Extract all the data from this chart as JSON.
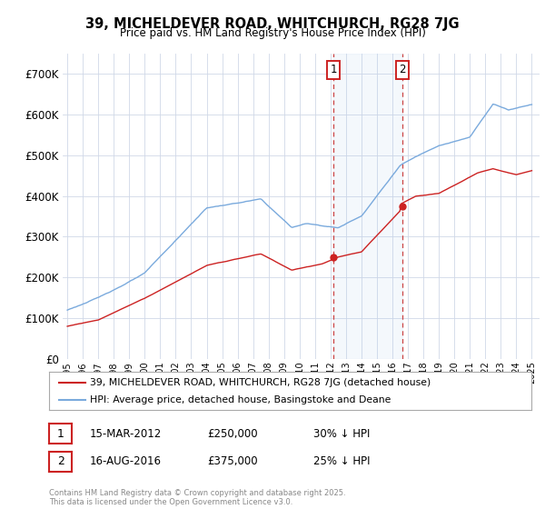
{
  "title": "39, MICHELDEVER ROAD, WHITCHURCH, RG28 7JG",
  "subtitle": "Price paid vs. HM Land Registry's House Price Index (HPI)",
  "ylim": [
    0,
    750000
  ],
  "yticks": [
    0,
    100000,
    200000,
    300000,
    400000,
    500000,
    600000,
    700000
  ],
  "ytick_labels": [
    "£0",
    "£100K",
    "£200K",
    "£300K",
    "£400K",
    "£500K",
    "£600K",
    "£700K"
  ],
  "legend_line1": "39, MICHELDEVER ROAD, WHITCHURCH, RG28 7JG (detached house)",
  "legend_line2": "HPI: Average price, detached house, Basingstoke and Deane",
  "annotation1_date": "15-MAR-2012",
  "annotation1_price": "£250,000",
  "annotation1_pct": "30% ↓ HPI",
  "annotation2_date": "16-AUG-2016",
  "annotation2_price": "£375,000",
  "annotation2_pct": "25% ↓ HPI",
  "copyright": "Contains HM Land Registry data © Crown copyright and database right 2025.\nThis data is licensed under the Open Government Licence v3.0.",
  "line_color_red": "#cc2222",
  "line_color_blue": "#7aaadd",
  "background_color": "#ffffff",
  "grid_color": "#d0d8e8",
  "ann1_x_year": 2012.2,
  "ann2_x_year": 2016.62,
  "ann1_price_val": 250000,
  "ann2_price_val": 375000,
  "xlim_left": 1994.7,
  "xlim_right": 2025.5
}
